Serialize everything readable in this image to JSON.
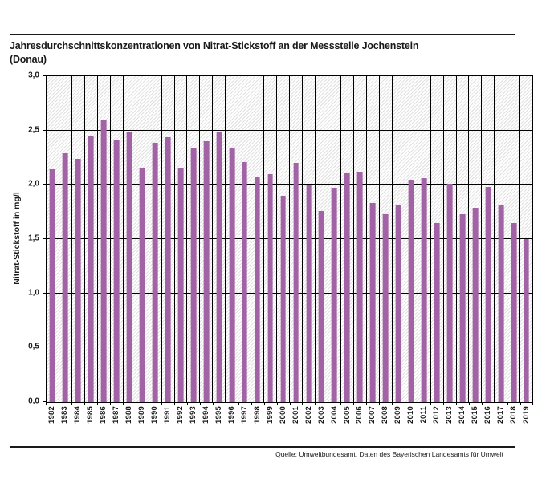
{
  "header": {
    "title_line1": "Jahresdurchschnittskonzentrationen von Nitrat-Stickstoff an der Messstelle Jochenstein",
    "title_line2": "(Donau)"
  },
  "footer": {
    "source": "Quelle: Umweltbundesamt, Daten des Bayerischen Landesamts für Umwelt"
  },
  "chart_data": {
    "type": "bar",
    "title": "Jahresdurchschnittskonzentrationen von Nitrat-Stickstoff an der Messstelle Jochenstein (Donau)",
    "xlabel": "",
    "ylabel": "Nitrat-Stickstoff in mg/l",
    "ylim": [
      0,
      3.0
    ],
    "ytick_step": 0.5,
    "ytick_labels": [
      "0,0",
      "0,5",
      "1,0",
      "1,5",
      "2,0",
      "2,5",
      "3,0"
    ],
    "grid": true,
    "legend": "none",
    "bar_color": "#a163a6",
    "plot_background": "white-with-light-gray-diagonal-hatch",
    "categories": [
      "1982",
      "1983",
      "1984",
      "1985",
      "1986",
      "1987",
      "1988",
      "1989",
      "1990",
      "1991",
      "1992",
      "1993",
      "1994",
      "1995",
      "1996",
      "1997",
      "1998",
      "1999",
      "2000",
      "2001",
      "2002",
      "2003",
      "2004",
      "2005",
      "2006",
      "2007",
      "2008",
      "2009",
      "2010",
      "2011",
      "2012",
      "2013",
      "2014",
      "2015",
      "2016",
      "2017",
      "2018",
      "2019"
    ],
    "values": [
      2.14,
      2.29,
      2.24,
      2.45,
      2.6,
      2.41,
      2.49,
      2.16,
      2.39,
      2.44,
      2.15,
      2.34,
      2.4,
      2.48,
      2.34,
      2.21,
      2.07,
      2.1,
      1.9,
      2.2,
      2.0,
      1.76,
      1.97,
      2.11,
      2.12,
      1.83,
      1.73,
      1.81,
      2.05,
      2.06,
      1.65,
      2.01,
      1.73,
      1.79,
      1.98,
      1.82,
      1.65,
      1.5
    ]
  }
}
